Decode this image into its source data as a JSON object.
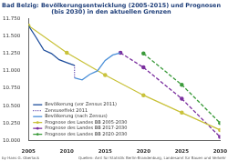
{
  "chart_data": {
    "type": "line",
    "title": [
      "Bad Belzig: Bevölkerungsentwicklung (2005-2015) und Prognosen",
      "(bis 2030) in den aktuellen Grenzen"
    ],
    "annotations": [
      "by Hans G. Oberlack",
      "Quellen: Amt für Statistik Berlin-Brandenburg, Landesamt für Bauen und Verkehr"
    ],
    "xlim": [
      2005,
      2030
    ],
    "xticks": [
      2005,
      2010,
      2015,
      2020,
      2025,
      2030
    ],
    "ylim": [
      10000,
      11750
    ],
    "yticks": [
      {
        "value": 10000,
        "label": "10.000"
      },
      {
        "value": 10250,
        "label": "10.250"
      },
      {
        "value": 10500,
        "label": "10.500"
      },
      {
        "value": 10750,
        "label": "10.750"
      },
      {
        "value": 11000,
        "label": "11.000"
      },
      {
        "value": 11250,
        "label": "11.250"
      },
      {
        "value": 11500,
        "label": "11.500"
      },
      {
        "value": 11750,
        "label": "11.750"
      }
    ],
    "grid": false,
    "legend": "lower left",
    "series": [
      {
        "name": "Bevölkerung (vor Zensus 2011)",
        "color": "#1f4e9c",
        "line_style": "solid",
        "x": [
          2005,
          2006,
          2007,
          2008,
          2009,
          2010,
          2011
        ],
        "values": [
          11650,
          11480,
          11300,
          11250,
          11160,
          11120,
          11080
        ]
      },
      {
        "name": "Zensuseffekt 2011",
        "color": "#5b3fa8",
        "line_style": "dotted",
        "x": [
          2011,
          2011
        ],
        "values": [
          11080,
          10900
        ]
      },
      {
        "name": "Bevölkerung (nach Zensus)",
        "color": "#4a8fd8",
        "line_style": "solid",
        "x": [
          2011,
          2012,
          2013,
          2014,
          2015,
          2016,
          2017
        ],
        "values": [
          10900,
          10870,
          10950,
          11000,
          11150,
          11230,
          11260
        ]
      },
      {
        "name": "Prognose des Landes BB 2005-2030",
        "color": "#c9c23a",
        "line_style": "solid",
        "marker": "circle",
        "x": [
          2005,
          2010,
          2015,
          2020,
          2025,
          2030
        ],
        "values": [
          11650,
          11260,
          10940,
          10650,
          10400,
          10150
        ]
      },
      {
        "name": "Prognose des Landes BB 2017-2030",
        "color": "#7a2e9e",
        "line_style": "dashed",
        "marker": "circle",
        "x": [
          2017,
          2020,
          2025,
          2030
        ],
        "values": [
          11260,
          11050,
          10600,
          10050
        ]
      },
      {
        "name": "Prognose des Landes BB 2020-2030",
        "color": "#3a9a3a",
        "line_style": "dashed",
        "marker": "circle",
        "x": [
          2020,
          2025,
          2030
        ],
        "values": [
          11250,
          10800,
          10250
        ]
      }
    ]
  }
}
